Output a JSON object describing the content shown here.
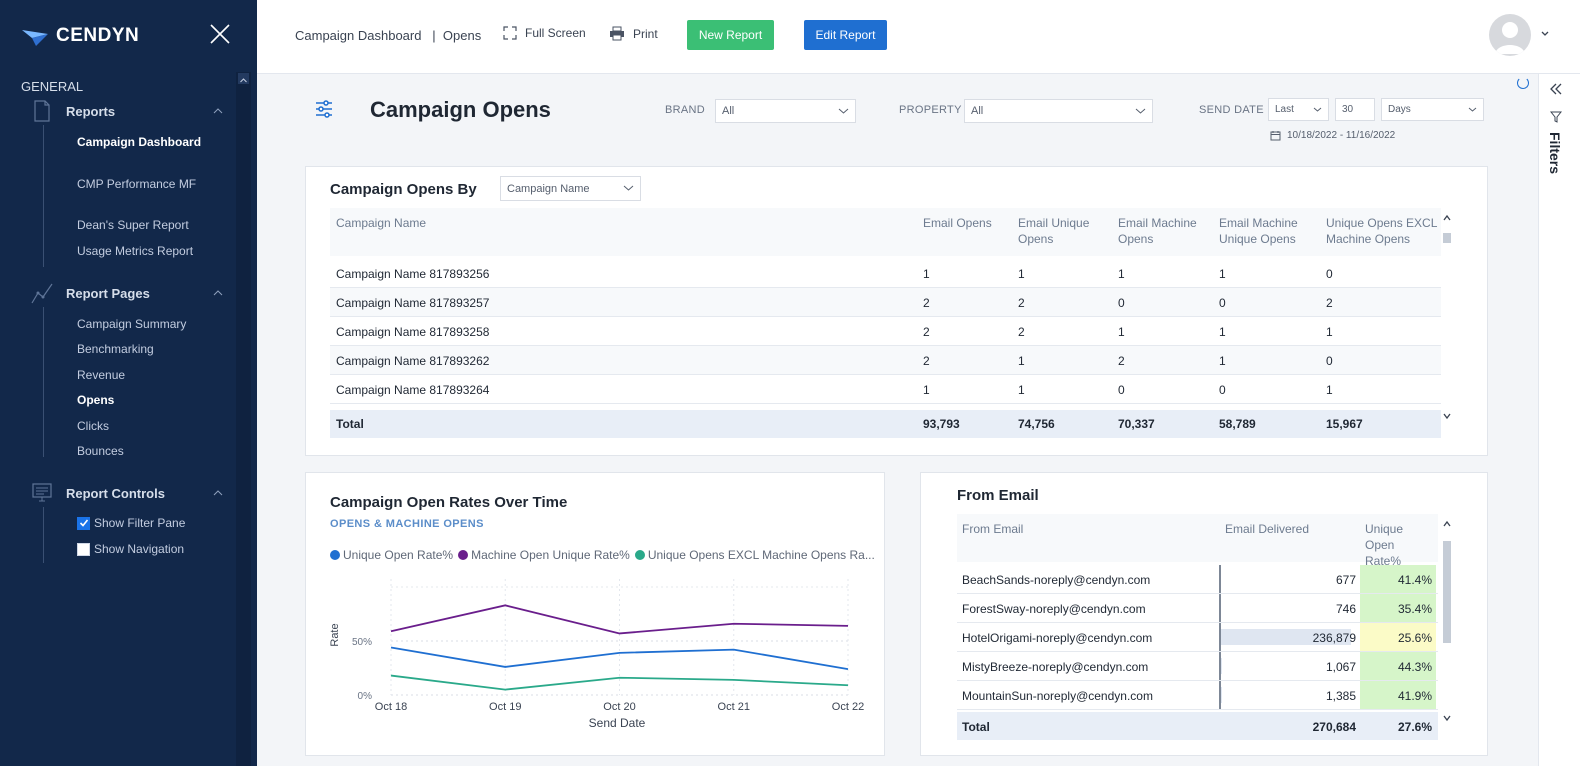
{
  "sidebar": {
    "logo_text": "CENDYN",
    "section_title": "GENERAL",
    "groups": [
      {
        "label": "Reports",
        "items": [
          "Campaign Dashboard",
          "CMP Performance MF",
          "Dean's Super Report",
          "Usage Metrics Report"
        ]
      },
      {
        "label": "Report Pages",
        "items": [
          "Campaign Summary",
          "Benchmarking",
          "Revenue",
          "Opens",
          "Clicks",
          "Bounces"
        ]
      },
      {
        "label": "Report Controls",
        "items": [
          "Show Filter Pane",
          "Show Navigation"
        ]
      }
    ],
    "active_page": "Opens",
    "show_filter_pane": true,
    "show_navigation": false
  },
  "topbar": {
    "breadcrumb": "Campaign Dashboard   |  Opens",
    "full_screen": "Full Screen",
    "print": "Print",
    "new_report": "New Report",
    "edit_report": "Edit Report"
  },
  "rail": {
    "filters_label": "Filters"
  },
  "page": {
    "title": "Campaign Opens",
    "filters": {
      "brand_label": "BRAND",
      "brand_value": "All",
      "property_label": "PROPERTY",
      "property_value": "All",
      "send_date_label": "SEND DATE",
      "send_date_mode": "Last",
      "send_date_count": "30",
      "send_date_unit": "Days",
      "date_range": "10/18/2022 - 11/16/2022"
    }
  },
  "opens_by": {
    "title": "Campaign Opens By",
    "group_by": "Campaign Name",
    "columns": [
      "Campaign Name",
      "Email Opens",
      "Email Unique Opens",
      "Email Machine Opens",
      "Email Machine Unique Opens",
      "Unique Opens EXCL Machine Opens"
    ],
    "rows": [
      [
        "Campaign Name 817893256",
        "1",
        "1",
        "1",
        "1",
        "0"
      ],
      [
        "Campaign Name 817893257",
        "2",
        "2",
        "0",
        "0",
        "2"
      ],
      [
        "Campaign Name 817893258",
        "2",
        "2",
        "1",
        "1",
        "1"
      ],
      [
        "Campaign Name 817893262",
        "2",
        "1",
        "2",
        "1",
        "0"
      ],
      [
        "Campaign Name 817893264",
        "1",
        "1",
        "0",
        "0",
        "1"
      ]
    ],
    "total": [
      "Total",
      "93,793",
      "74,756",
      "70,337",
      "58,789",
      "15,967"
    ]
  },
  "rates_chart": {
    "title": "Campaign Open Rates Over Time",
    "subtitle": "OPENS & MACHINE OPENS"
  },
  "chart_data": {
    "type": "line",
    "categories": [
      "Oct 18",
      "Oct 19",
      "Oct 20",
      "Oct 21",
      "Oct 22"
    ],
    "series": [
      {
        "name": "Unique Open Rate%",
        "values": [
          44,
          26,
          39,
          42,
          24
        ],
        "color": "#1f6fd1"
      },
      {
        "name": "Machine Open Unique Rate%",
        "values": [
          59,
          83,
          57,
          66,
          64
        ],
        "color": "#6a1e8c"
      },
      {
        "name": "Unique Opens EXCL Machine Opens Ra...",
        "values": [
          18,
          5,
          16,
          14,
          9
        ],
        "color": "#2aa98a"
      }
    ],
    "xlabel": "Send Date",
    "ylabel": "Rate",
    "yticks": [
      "0%",
      "50%"
    ],
    "ylim": [
      0,
      100
    ],
    "grid": true,
    "legend": "top"
  },
  "from_email": {
    "title": "From Email",
    "columns": [
      "From Email",
      "Email Delivered",
      "Unique Open Rate%"
    ],
    "rows": [
      {
        "email": "BeachSands-noreply@cendyn.com",
        "delivered": "677",
        "delivered_value": 677,
        "rate": "41.4%",
        "rate_color": "#d6f5c9"
      },
      {
        "email": "ForestSway-noreply@cendyn.com",
        "delivered": "746",
        "delivered_value": 746,
        "rate": "35.4%",
        "rate_color": "#d6f5c9"
      },
      {
        "email": "HotelOrigami-noreply@cendyn.com",
        "delivered": "236,879",
        "delivered_value": 236879,
        "rate": "25.6%",
        "rate_color": "#fbfbc7"
      },
      {
        "email": "MistyBreeze-noreply@cendyn.com",
        "delivered": "1,067",
        "delivered_value": 1067,
        "rate": "44.3%",
        "rate_color": "#d6f5c9"
      },
      {
        "email": "MountainSun-noreply@cendyn.com",
        "delivered": "1,385",
        "delivered_value": 1385,
        "rate": "41.9%",
        "rate_color": "#d6f5c9"
      }
    ],
    "total": {
      "label": "Total",
      "delivered": "270,684",
      "rate": "27.6%"
    }
  }
}
